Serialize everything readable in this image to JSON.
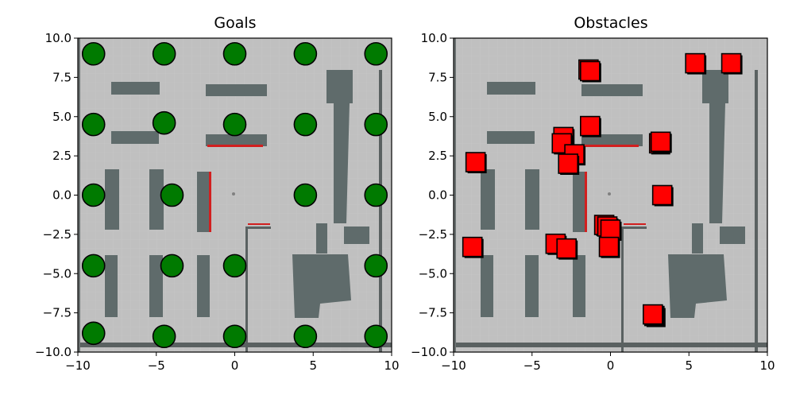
{
  "chart_data": [
    {
      "type": "scatter",
      "title": "Goals",
      "xlim": [
        -10,
        10
      ],
      "ylim": [
        -10,
        10
      ],
      "xticks": [
        -10,
        -5,
        0,
        5,
        10
      ],
      "xtick_labels": [
        "−10",
        "−5",
        "0",
        "5",
        "10"
      ],
      "yticks": [
        10,
        7.5,
        5,
        2.5,
        0,
        -2.5,
        -5,
        -7.5,
        -10
      ],
      "ytick_labels": [
        "10.0",
        "7.5",
        "5.0",
        "2.5",
        "0.0",
        "−2.5",
        "−5.0",
        "−7.5",
        "−10.0"
      ],
      "marker": "circle",
      "marker_color": "#007a00",
      "background": "occupancy map",
      "points": [
        {
          "x": -9,
          "y": 9
        },
        {
          "x": -4.5,
          "y": 9
        },
        {
          "x": 0,
          "y": 9
        },
        {
          "x": 4.5,
          "y": 9
        },
        {
          "x": 9,
          "y": 9
        },
        {
          "x": -9,
          "y": 4.5
        },
        {
          "x": -4.5,
          "y": 4.6
        },
        {
          "x": 0,
          "y": 4.5
        },
        {
          "x": 4.5,
          "y": 4.5
        },
        {
          "x": 9,
          "y": 4.5
        },
        {
          "x": -9,
          "y": 0
        },
        {
          "x": -4,
          "y": 0
        },
        {
          "x": 4.5,
          "y": 0
        },
        {
          "x": 9,
          "y": 0
        },
        {
          "x": -9,
          "y": -4.5
        },
        {
          "x": -4,
          "y": -4.5
        },
        {
          "x": 0,
          "y": -4.5
        },
        {
          "x": 9,
          "y": -4.5
        },
        {
          "x": -9,
          "y": -8.8
        },
        {
          "x": -4.5,
          "y": -9
        },
        {
          "x": 0,
          "y": -9
        },
        {
          "x": 4.5,
          "y": -9
        },
        {
          "x": 9,
          "y": -9
        }
      ]
    },
    {
      "type": "scatter",
      "title": "Obstacles",
      "xlim": [
        -10,
        10
      ],
      "ylim": [
        -10,
        10
      ],
      "xticks": [
        -10,
        -5,
        0,
        5,
        10
      ],
      "xtick_labels": [
        "−10",
        "−5",
        "0",
        "5",
        "10"
      ],
      "yticks": [
        10,
        7.5,
        5,
        2.5,
        0,
        -2.5,
        -5,
        -7.5,
        -10
      ],
      "ytick_labels": [
        "10.0",
        "7.5",
        "5.0",
        "2.5",
        "0.0",
        "−2.5",
        "−5.0",
        "−7.5",
        "−10.0"
      ],
      "marker": "square",
      "marker_color": "#ff0000",
      "background": "occupancy map",
      "points": [
        {
          "x": -1.4,
          "y": 8.0
        },
        {
          "x": -1.3,
          "y": 7.9
        },
        {
          "x": 5.4,
          "y": 8.4
        },
        {
          "x": 7.7,
          "y": 8.4
        },
        {
          "x": -1.3,
          "y": 4.4
        },
        {
          "x": -3.0,
          "y": 3.7
        },
        {
          "x": -3.1,
          "y": 3.3
        },
        {
          "x": 3.1,
          "y": 3.3
        },
        {
          "x": 3.2,
          "y": 3.4
        },
        {
          "x": -2.3,
          "y": 2.6
        },
        {
          "x": -8.6,
          "y": 2.1
        },
        {
          "x": -2.7,
          "y": 2.0
        },
        {
          "x": 3.3,
          "y": 0.0
        },
        {
          "x": -0.4,
          "y": -1.9
        },
        {
          "x": -0.2,
          "y": -2.0
        },
        {
          "x": 0.0,
          "y": -2.2
        },
        {
          "x": -3.5,
          "y": -3.1
        },
        {
          "x": -2.8,
          "y": -3.4
        },
        {
          "x": -0.1,
          "y": -3.3
        },
        {
          "x": -8.8,
          "y": -3.3
        },
        {
          "x": 2.8,
          "y": -7.7
        },
        {
          "x": 2.7,
          "y": -7.6
        }
      ]
    }
  ]
}
